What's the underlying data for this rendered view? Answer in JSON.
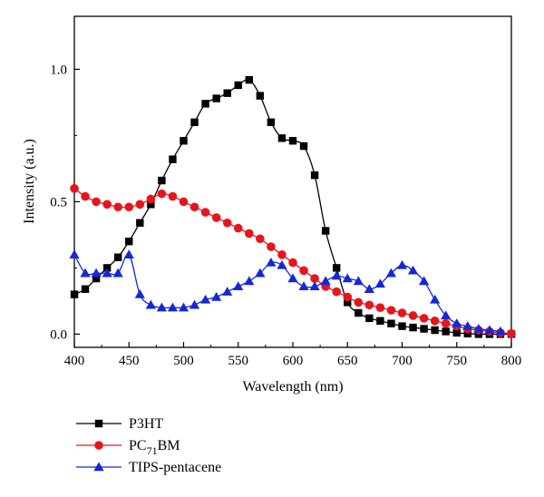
{
  "chart_data": {
    "type": "line",
    "xlabel": "Wavelength (nm)",
    "ylabel": "Intensity (a.u.)",
    "xlim": [
      400,
      800
    ],
    "ylim": [
      -0.05,
      1.2
    ],
    "x_ticks": [
      "400",
      "450",
      "500",
      "550",
      "600",
      "650",
      "700",
      "750",
      "800"
    ],
    "y_ticks": [
      "0.0",
      "0.5",
      "1.0"
    ],
    "grid": false,
    "legend_position": "bottom-left, below plot",
    "series": [
      {
        "name": "P3HT",
        "name_main": "P3HT",
        "name_sub": "",
        "name_rest": "",
        "color": "#000000",
        "marker": "square",
        "x": [
          400,
          410,
          420,
          430,
          440,
          450,
          460,
          470,
          480,
          490,
          500,
          510,
          520,
          530,
          540,
          550,
          560,
          570,
          580,
          590,
          600,
          610,
          620,
          630,
          640,
          650,
          660,
          670,
          680,
          690,
          700,
          710,
          720,
          730,
          740,
          750,
          760,
          770,
          780,
          790,
          800
        ],
        "y": [
          0.15,
          0.17,
          0.21,
          0.25,
          0.29,
          0.35,
          0.42,
          0.49,
          0.58,
          0.66,
          0.73,
          0.8,
          0.87,
          0.89,
          0.91,
          0.94,
          0.96,
          0.9,
          0.8,
          0.74,
          0.73,
          0.71,
          0.6,
          0.39,
          0.25,
          0.12,
          0.08,
          0.06,
          0.05,
          0.04,
          0.03,
          0.025,
          0.02,
          0.015,
          0.01,
          0.005,
          0.002,
          0.0,
          0.0,
          0.0,
          0.0
        ]
      },
      {
        "name": "PC71BM",
        "name_main": "PC",
        "name_sub": "71",
        "name_rest": "BM",
        "color": "#e8141c",
        "marker": "circle",
        "x": [
          400,
          410,
          420,
          430,
          440,
          450,
          460,
          470,
          480,
          490,
          500,
          510,
          520,
          530,
          540,
          550,
          560,
          570,
          580,
          590,
          600,
          610,
          620,
          630,
          640,
          650,
          660,
          670,
          680,
          690,
          700,
          710,
          720,
          730,
          740,
          750,
          760,
          770,
          780,
          790,
          800
        ],
        "y": [
          0.55,
          0.52,
          0.5,
          0.49,
          0.48,
          0.48,
          0.49,
          0.51,
          0.53,
          0.52,
          0.5,
          0.48,
          0.46,
          0.44,
          0.42,
          0.4,
          0.38,
          0.36,
          0.33,
          0.3,
          0.27,
          0.24,
          0.21,
          0.18,
          0.16,
          0.14,
          0.12,
          0.11,
          0.1,
          0.09,
          0.08,
          0.07,
          0.06,
          0.05,
          0.04,
          0.03,
          0.02,
          0.015,
          0.01,
          0.005,
          0.002
        ]
      },
      {
        "name": "TIPS-pentacene",
        "name_main": "TIPS-pentacene",
        "name_sub": "",
        "name_rest": "",
        "color": "#1428d8",
        "marker": "triangle",
        "x": [
          400,
          410,
          420,
          430,
          440,
          450,
          460,
          470,
          480,
          490,
          500,
          510,
          520,
          530,
          540,
          550,
          560,
          570,
          580,
          590,
          600,
          610,
          620,
          630,
          640,
          650,
          660,
          670,
          680,
          690,
          700,
          710,
          720,
          730,
          740,
          750,
          760,
          770,
          780,
          790
        ],
        "y": [
          0.3,
          0.23,
          0.23,
          0.23,
          0.23,
          0.3,
          0.15,
          0.11,
          0.1,
          0.1,
          0.1,
          0.11,
          0.13,
          0.14,
          0.16,
          0.18,
          0.2,
          0.23,
          0.27,
          0.26,
          0.21,
          0.18,
          0.18,
          0.2,
          0.22,
          0.21,
          0.2,
          0.17,
          0.19,
          0.23,
          0.26,
          0.24,
          0.2,
          0.13,
          0.07,
          0.04,
          0.03,
          0.02,
          0.015,
          0.01
        ]
      }
    ]
  }
}
